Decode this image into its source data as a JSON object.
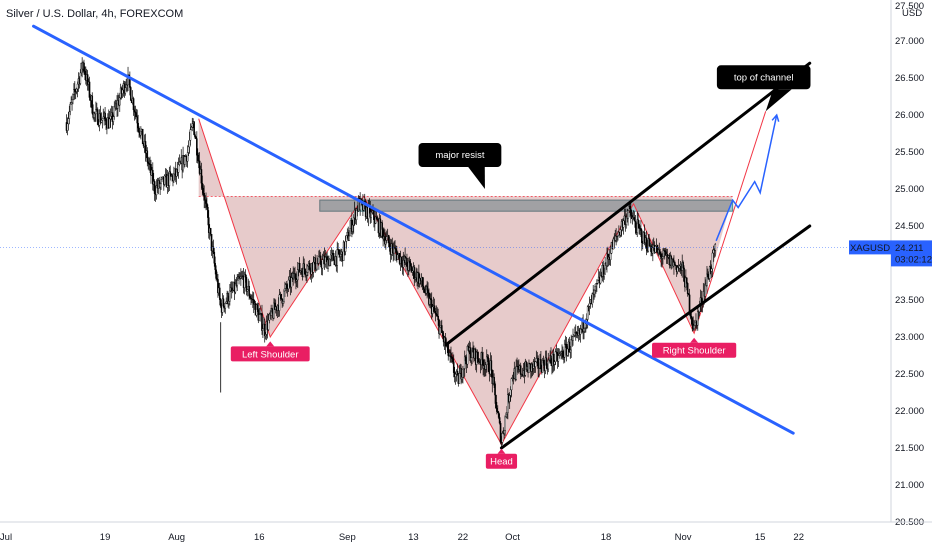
{
  "header": {
    "title": "Silver / U.S. Dollar, 4h, FOREXCOM"
  },
  "chart_data": {
    "type": "candlestick",
    "symbol": "XAGUSD",
    "currency": "USD",
    "timeframe": "4h",
    "ylim": [
      20.5,
      27.5
    ],
    "y_ticks": [
      "27.500",
      "27.000",
      "26.500",
      "26.000",
      "25.500",
      "25.000",
      "24.500",
      "24.000",
      "23.500",
      "23.000",
      "22.500",
      "22.000",
      "21.500",
      "21.000",
      "20.500"
    ],
    "x_ticks": [
      "Jul",
      "19",
      "Aug",
      "16",
      "Sep",
      "13",
      "22",
      "Oct",
      "18",
      "Nov",
      "15",
      "22"
    ],
    "last_price": {
      "label": "XAGUSD",
      "value": "24.211",
      "countdown": "03:02:12"
    },
    "price_path": [
      {
        "d": "Jul 12",
        "p": 25.9
      },
      {
        "d": "Jul 15",
        "p": 26.7
      },
      {
        "d": "Jul 17",
        "p": 26.0
      },
      {
        "d": "Jul 20",
        "p": 25.9
      },
      {
        "d": "Jul 23",
        "p": 26.5
      },
      {
        "d": "Jul 26",
        "p": 25.6
      },
      {
        "d": "Jul 28",
        "p": 25.0
      },
      {
        "d": "Aug 1",
        "p": 25.2
      },
      {
        "d": "Aug 3",
        "p": 25.5
      },
      {
        "d": "Aug 4",
        "p": 25.9
      },
      {
        "d": "Aug 6",
        "p": 24.9
      },
      {
        "d": "Aug 9",
        "p": 23.4
      },
      {
        "d": "Aug 13",
        "p": 23.8
      },
      {
        "d": "Aug 17",
        "p": 23.1
      },
      {
        "d": "Aug 19",
        "p": 23.4
      },
      {
        "d": "Aug 23",
        "p": 23.9
      },
      {
        "d": "Aug 27",
        "p": 24.0
      },
      {
        "d": "Aug 31",
        "p": 24.1
      },
      {
        "d": "Sep 3",
        "p": 24.8
      },
      {
        "d": "Sep 6",
        "p": 24.6
      },
      {
        "d": "Sep 9",
        "p": 24.2
      },
      {
        "d": "Sep 14",
        "p": 23.8
      },
      {
        "d": "Sep 17",
        "p": 23.3
      },
      {
        "d": "Sep 21",
        "p": 22.4
      },
      {
        "d": "Sep 23",
        "p": 22.8
      },
      {
        "d": "Sep 27",
        "p": 22.6
      },
      {
        "d": "Sep 29",
        "p": 21.6
      },
      {
        "d": "Oct 1",
        "p": 22.5
      },
      {
        "d": "Oct 5",
        "p": 22.6
      },
      {
        "d": "Oct 9",
        "p": 22.7
      },
      {
        "d": "Oct 13",
        "p": 23.0
      },
      {
        "d": "Oct 15",
        "p": 23.4
      },
      {
        "d": "Oct 19",
        "p": 24.2
      },
      {
        "d": "Oct 22",
        "p": 24.7
      },
      {
        "d": "Oct 25",
        "p": 24.3
      },
      {
        "d": "Oct 28",
        "p": 24.1
      },
      {
        "d": "Nov 1",
        "p": 23.9
      },
      {
        "d": "Nov 3",
        "p": 23.1
      },
      {
        "d": "Nov 5",
        "p": 23.7
      },
      {
        "d": "Nov 7",
        "p": 24.2
      }
    ],
    "trendlines": [
      {
        "name": "descending",
        "color": "#2962ff",
        "from": {
          "d": "Jul 6",
          "p": 27.2
        },
        "to": {
          "d": "Nov 21",
          "p": 21.7
        }
      },
      {
        "name": "channel-upper",
        "color": "#000000",
        "from": {
          "d": "Sep 19",
          "p": 22.9
        },
        "to": {
          "d": "Nov 24",
          "p": 26.7
        }
      },
      {
        "name": "channel-lower",
        "color": "#000000",
        "from": {
          "d": "Sep 29",
          "p": 21.5
        },
        "to": {
          "d": "Nov 24",
          "p": 24.5
        }
      }
    ],
    "resistance_zone": {
      "from": "Aug 27",
      "to": "Nov 10",
      "low": 24.7,
      "high": 24.85
    },
    "projection": [
      {
        "d": "Nov 7",
        "p": 24.3
      },
      {
        "d": "Nov 10",
        "p": 24.85
      },
      {
        "d": "Nov 11",
        "p": 24.75
      },
      {
        "d": "Nov 14",
        "p": 25.1
      },
      {
        "d": "Nov 15",
        "p": 24.95
      },
      {
        "d": "Nov 18",
        "p": 26.0
      }
    ],
    "pattern": {
      "points": [
        {
          "d": "Aug 5",
          "p": 25.95
        },
        {
          "d": "Aug 18",
          "p": 23.0
        },
        {
          "d": "Sep 4",
          "p": 24.9
        },
        {
          "d": "Sep 29",
          "p": 21.55
        },
        {
          "d": "Oct 23",
          "p": 24.8
        },
        {
          "d": "Nov 3",
          "p": 23.05
        },
        {
          "d": "Nov 16",
          "p": 26.05
        }
      ],
      "neckline": 24.9
    },
    "annotations": [
      {
        "name": "left-shoulder",
        "text": "Left Shoulder",
        "style": "pink",
        "d": "Aug 18",
        "p": 22.9
      },
      {
        "name": "head",
        "text": "Head",
        "style": "pink",
        "d": "Sep 29",
        "p": 21.45
      },
      {
        "name": "right-shoulder",
        "text": "Right Shoulder",
        "style": "pink",
        "d": "Nov 3",
        "p": 22.95
      },
      {
        "name": "major-resist",
        "text": "major resist",
        "style": "dark",
        "d": "Sep 26",
        "p": 25.0
      },
      {
        "name": "top-of-channel",
        "text": "top of channel",
        "style": "dark",
        "d": "Nov 16",
        "p": 26.05
      }
    ]
  },
  "colors": {
    "candle_up": "#000000",
    "candle_down": "#000000",
    "trend_blue": "#2962ff",
    "channel_black": "#000000",
    "pattern_fill": "rgba(170,70,70,0.28)",
    "pattern_line": "#f23645",
    "zone_fill": "#7fb2b8",
    "label_pink": "#e91e63",
    "label_dark": "#000000",
    "price_tag": "#2962ff"
  }
}
